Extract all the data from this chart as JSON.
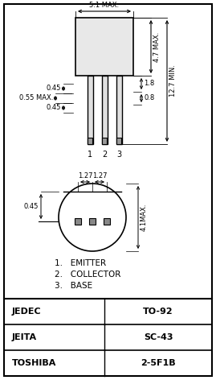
{
  "background_color": "#ffffff",
  "outer_border_color": "#000000",
  "table_rows": [
    {
      "label": "JEDEC",
      "value": "TO-92"
    },
    {
      "label": "JEITA",
      "value": "SC-43"
    },
    {
      "label": "TOSHIBA",
      "value": "2-5F1B"
    }
  ],
  "dim_labels": {
    "top_width": "5.1 MAX.",
    "height_top": "4.7 MAX.",
    "pin_width": "0.55 MAX.",
    "pin_spacing_left": "0.45",
    "pin_spacing_right": "0.45",
    "lead_width": "0.8",
    "lead_height": "1.8",
    "total_height": "12.7 MIN.",
    "bottom_dia": "4.1MAX.",
    "pin_pitch1": "1.27",
    "pin_pitch2": "1.27",
    "bottom_pin_offset": "0.45"
  },
  "pin_labels": [
    "1",
    "2",
    "3"
  ],
  "pin_names": [
    "EMITTER",
    "COLLECTOR",
    "BASE"
  ],
  "label_color": "#000000",
  "value_color": "#000000",
  "line_color": "#000000",
  "table_line_color": "#000000"
}
